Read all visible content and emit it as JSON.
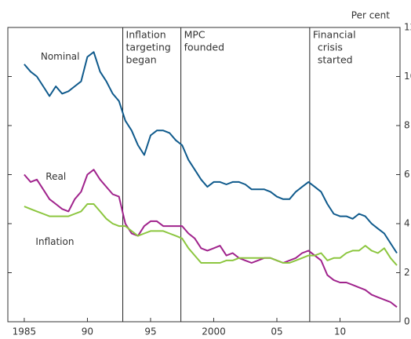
{
  "chart_data": {
    "type": "line",
    "y_label": "Per cent",
    "x": [
      1985,
      1985.5,
      1986,
      1986.5,
      1987,
      1987.5,
      1988,
      1988.5,
      1989,
      1989.5,
      1990,
      1990.5,
      1991,
      1991.5,
      1992,
      1992.5,
      1993,
      1993.5,
      1994,
      1994.5,
      1995,
      1995.5,
      1996,
      1996.5,
      1997,
      1997.5,
      1998,
      1998.5,
      1999,
      1999.5,
      2000,
      2000.5,
      2001,
      2001.5,
      2002,
      2002.5,
      2003,
      2003.5,
      2004,
      2004.5,
      2005,
      2005.5,
      2006,
      2006.5,
      2007,
      2007.5,
      2008,
      2008.5,
      2009,
      2009.5,
      2010,
      2010.5,
      2011,
      2011.5,
      2012,
      2012.5,
      2013,
      2013.5,
      2014,
      2014.5
    ],
    "series": [
      {
        "name": "Nominal",
        "color": "#0f5a8c",
        "label_at": [
          1986.3,
          10.8
        ],
        "values": [
          10.5,
          10.2,
          10.0,
          9.6,
          9.2,
          9.6,
          9.3,
          9.4,
          9.6,
          9.8,
          10.8,
          11.0,
          10.2,
          9.8,
          9.3,
          9.0,
          8.2,
          7.8,
          7.2,
          6.8,
          7.6,
          7.8,
          7.8,
          7.7,
          7.4,
          7.2,
          6.6,
          6.2,
          5.8,
          5.5,
          5.7,
          5.7,
          5.6,
          5.7,
          5.7,
          5.6,
          5.4,
          5.4,
          5.4,
          5.3,
          5.1,
          5.0,
          5.0,
          5.3,
          5.5,
          5.7,
          5.5,
          5.3,
          4.8,
          4.4,
          4.3,
          4.3,
          4.2,
          4.4,
          4.3,
          4.0,
          3.8,
          3.6,
          3.2,
          2.8
        ]
      },
      {
        "name": "Real",
        "color": "#a0238c",
        "label_at": [
          1986.7,
          5.9
        ],
        "values": [
          6.0,
          5.7,
          5.8,
          5.4,
          5.0,
          4.8,
          4.6,
          4.5,
          5.0,
          5.3,
          6.0,
          6.2,
          5.8,
          5.5,
          5.2,
          5.1,
          4.0,
          3.6,
          3.5,
          3.9,
          4.1,
          4.1,
          3.9,
          3.9,
          3.9,
          3.9,
          3.6,
          3.4,
          3.0,
          2.9,
          3.0,
          3.1,
          2.7,
          2.8,
          2.6,
          2.5,
          2.4,
          2.5,
          2.6,
          2.6,
          2.5,
          2.4,
          2.5,
          2.6,
          2.8,
          2.9,
          2.7,
          2.5,
          1.9,
          1.7,
          1.6,
          1.6,
          1.5,
          1.4,
          1.3,
          1.1,
          1.0,
          0.9,
          0.8,
          0.6
        ]
      },
      {
        "name": "Inflation",
        "color": "#8cc63f",
        "label_at": [
          1985.9,
          3.25
        ],
        "values": [
          4.7,
          4.6,
          4.5,
          4.4,
          4.3,
          4.3,
          4.3,
          4.3,
          4.4,
          4.5,
          4.8,
          4.8,
          4.5,
          4.2,
          4.0,
          3.9,
          3.9,
          3.7,
          3.5,
          3.6,
          3.7,
          3.7,
          3.7,
          3.6,
          3.5,
          3.4,
          3.0,
          2.7,
          2.4,
          2.4,
          2.4,
          2.4,
          2.5,
          2.5,
          2.6,
          2.6,
          2.6,
          2.6,
          2.6,
          2.6,
          2.5,
          2.4,
          2.4,
          2.5,
          2.6,
          2.7,
          2.7,
          2.8,
          2.5,
          2.6,
          2.6,
          2.8,
          2.9,
          2.9,
          3.1,
          2.9,
          2.8,
          3.0,
          2.6,
          2.3
        ]
      }
    ],
    "events": [
      {
        "x": 1992.8,
        "label": [
          "Inflation",
          "targeting",
          "began"
        ]
      },
      {
        "x": 1997.4,
        "label": [
          "MPC",
          "founded"
        ]
      },
      {
        "x": 2007.6,
        "label": [
          "Financial",
          "crisis",
          "started"
        ]
      }
    ],
    "xlim": [
      1983.7,
      2014.75
    ],
    "xticks": [
      1985,
      {
        "value": 1990,
        "label": "90"
      },
      {
        "value": 1995,
        "label": "95"
      },
      2000,
      {
        "value": 2005,
        "label": "05"
      },
      {
        "value": 2010,
        "label": "10"
      }
    ],
    "ylim": [
      0,
      12
    ],
    "yticks": [
      0,
      2,
      4,
      6,
      8,
      10,
      12
    ]
  }
}
